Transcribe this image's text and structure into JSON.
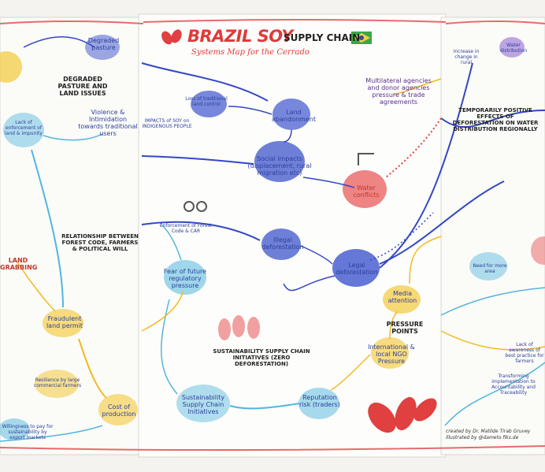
{
  "header": {
    "title": "BRAZIL SOY",
    "title_suffix": "SUPPLY CHAIN",
    "subtitle": "Systems Map for the Cerrado"
  },
  "credit": {
    "line1": "created by Dr. Matilde Tirab Gruvey",
    "line2": "illustrated by @dameto fiks.de"
  },
  "nodes": [
    {
      "id": "degraded-pasture",
      "text": "Degraded pasture"
    },
    {
      "id": "degraded-pasture-land-issues",
      "text": "DEGRADED PASTURE and LAND ISSUES"
    },
    {
      "id": "lack-of-enforcement",
      "text": "Lack of enforcement of land & impunity"
    },
    {
      "id": "violence-intimidation",
      "text": "Violence & Intimidation towards traditional users"
    },
    {
      "id": "loss-traditional-land",
      "text": "Loss of traditional land control"
    },
    {
      "id": "impacts-indigenous",
      "text": "IMPACTS of SOY on INDIGENOUS PEOPLE"
    },
    {
      "id": "land-abandonment",
      "text": "Land abandonment"
    },
    {
      "id": "social-impacts",
      "text": "Social impacts (displacement, rural migration etc)"
    },
    {
      "id": "multilateral-agencies",
      "text": "Multilateral agencies and donor agencies pressure & trade agreements"
    },
    {
      "id": "water-conflicts",
      "text": "Water conflicts"
    },
    {
      "id": "temporarily-positive",
      "text": "TEMPORARILY POSITIVE EFFECTS of DEFORESTATION on WATER DISTRIBUTION regionally"
    },
    {
      "id": "increase-in-change",
      "text": "Increase in change in rural"
    },
    {
      "id": "water-distribution",
      "text": "Water distribution"
    },
    {
      "id": "relationship-forest-code",
      "text": "RELATIONSHIP between FOREST CODE, FARMERS & POLITICAL WILL"
    },
    {
      "id": "enforcement-forest-code",
      "text": "Enforcement of Forest Code & CAR"
    },
    {
      "id": "illegal-deforestation",
      "text": "Illegal deforestation"
    },
    {
      "id": "legal-deforestation",
      "text": "Legal deforestation"
    },
    {
      "id": "land-grabbing",
      "text": "LAND GRABBING"
    },
    {
      "id": "fear-future-regulatory",
      "text": "Fear of future regulatory pressure"
    },
    {
      "id": "media-attention",
      "text": "Media attention"
    },
    {
      "id": "pressure-points",
      "text": "PRESSURE POINTS"
    },
    {
      "id": "need-for-more-area",
      "text": "Need for more area"
    },
    {
      "id": "fraudulent-land-permit",
      "text": "Fraudulent land permit"
    },
    {
      "id": "international-ngo",
      "text": "International & local NGO Pressure"
    },
    {
      "id": "sustainability-initiatives-header",
      "text": "SUSTAINABILITY SUPPLY CHAIN initiatives (zero deforestation)"
    },
    {
      "id": "resilience-commercial",
      "text": "Resilience by large commercial farmers"
    },
    {
      "id": "cost-of-production",
      "text": "Cost of production"
    },
    {
      "id": "sustainability-supply-chain",
      "text": "Sustainability Supply Chain Initiatives"
    },
    {
      "id": "reputation-risk",
      "text": "Reputation risk (traders)"
    },
    {
      "id": "lack-of-awareness",
      "text": "Lack of awareness of best practice for farmers"
    },
    {
      "id": "transforming-implementation",
      "text": "Transforming implementation to Accountability and Traceability"
    },
    {
      "id": "willingness-to-pay",
      "text": "Willingness to pay for sustainability by export markets"
    }
  ]
}
